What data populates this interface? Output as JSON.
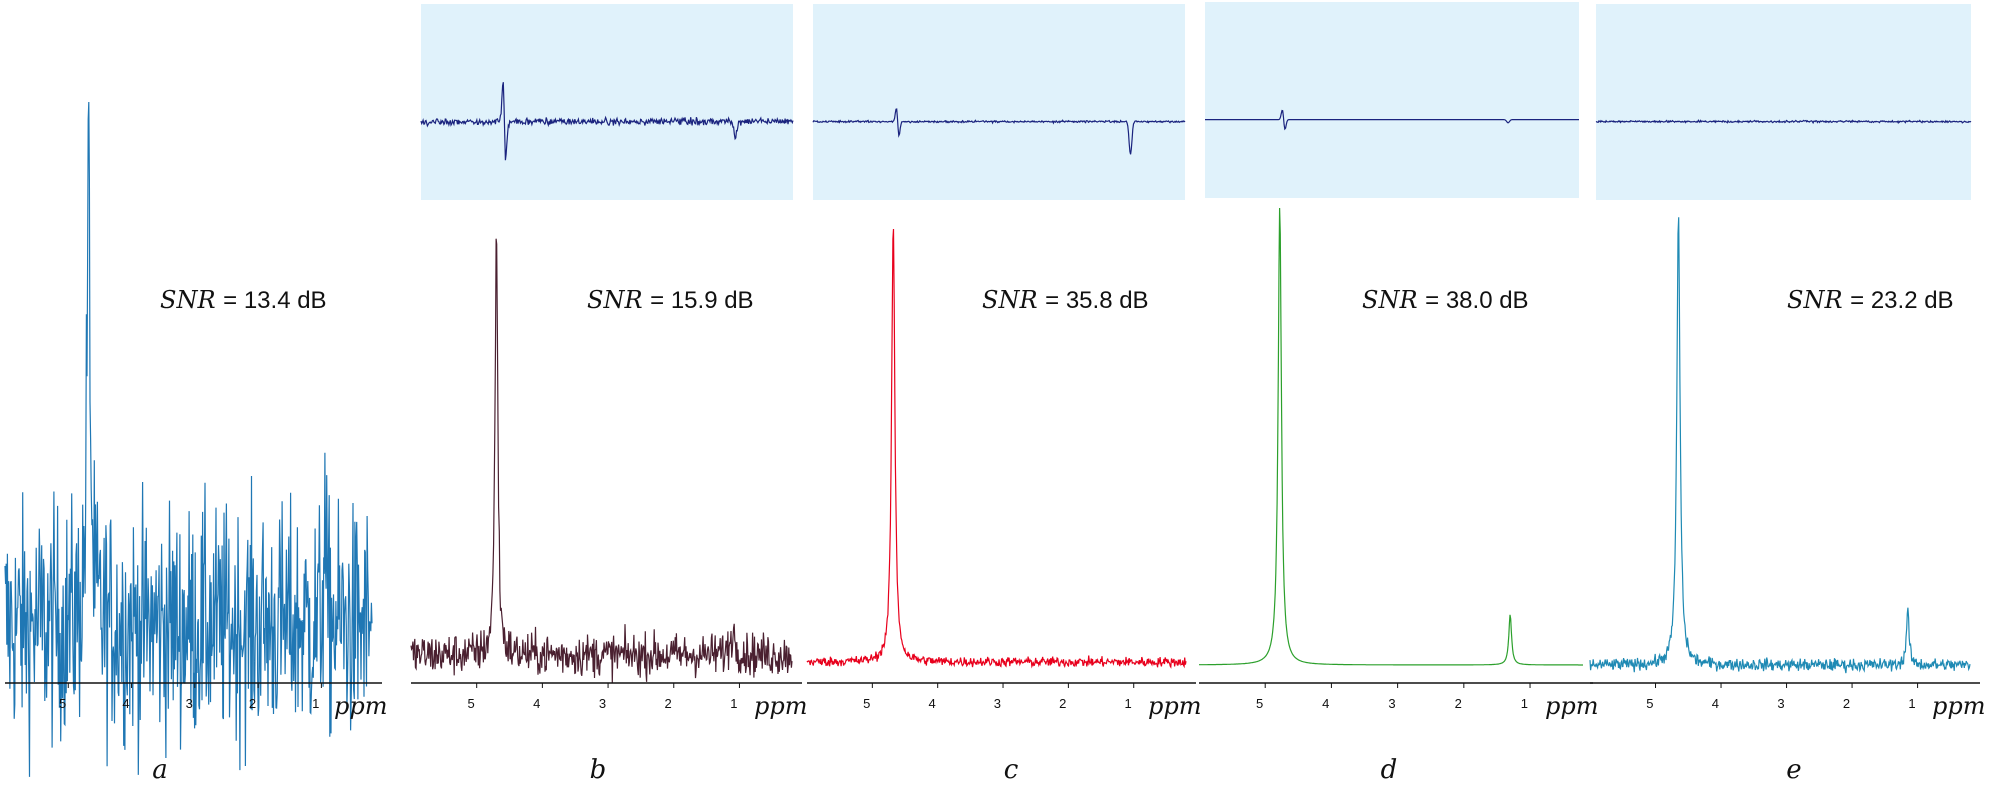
{
  "chart_data": [
    {
      "type": "line",
      "panel_label": "a",
      "annotation": {
        "prefix": "SNR",
        "value": "= 13.4 dB"
      },
      "xlabel": "ppm",
      "x_ticks": [
        "5",
        "4",
        "3",
        "2",
        "1"
      ],
      "xlim": [
        6.0,
        0.2
      ],
      "series": [
        {
          "color": "#1f77b4",
          "noise": 0.18,
          "baseline": 0.0,
          "peaks": [
            {
              "ppm": 4.68,
              "height": 1.0,
              "width": 0.06
            },
            {
              "ppm": 0.95,
              "height": 0.22,
              "width": 0.04
            }
          ]
        }
      ],
      "residual": null
    },
    {
      "type": "line",
      "panel_label": "b",
      "annotation": {
        "prefix": "SNR",
        "value": "= 15.9 dB"
      },
      "xlabel": "ppm",
      "x_ticks": [
        "5",
        "4",
        "3",
        "2",
        "1"
      ],
      "xlim": [
        6.0,
        0.2
      ],
      "series": [
        {
          "color": "#4a2030",
          "noise": 0.035,
          "baseline": 0.0,
          "peaks": [
            {
              "ppm": 4.7,
              "height": 1.0,
              "width": 0.05
            },
            {
              "ppm": 1.1,
              "height": 0.05,
              "width": 0.1
            }
          ]
        }
      ],
      "residual": {
        "color": "#1a237e",
        "background": "#e0f2fb",
        "noise": 0.18,
        "features": [
          {
            "ppm": 4.7,
            "amp": 1.0,
            "kind": "dispersion"
          },
          {
            "ppm": 1.1,
            "amp": -0.3,
            "kind": "dip"
          }
        ]
      }
    },
    {
      "type": "line",
      "panel_label": "c",
      "annotation": {
        "prefix": "SNR",
        "value": "= 35.8 dB"
      },
      "xlabel": "ppm",
      "x_ticks": [
        "5",
        "4",
        "3",
        "2",
        "1"
      ],
      "xlim": [
        6.0,
        0.2
      ],
      "series": [
        {
          "color": "#e8001c",
          "noise": 0.008,
          "baseline": 0.0,
          "peaks": [
            {
              "ppm": 4.68,
              "height": 1.0,
              "width": 0.06
            }
          ]
        }
      ],
      "residual": {
        "color": "#1a237e",
        "background": "#e0f2fb",
        "noise": 0.05,
        "features": [
          {
            "ppm": 4.68,
            "amp": 0.35,
            "kind": "dispersion"
          },
          {
            "ppm": 1.05,
            "amp": -0.6,
            "kind": "dip"
          }
        ]
      }
    },
    {
      "type": "line",
      "panel_label": "d",
      "annotation": {
        "prefix": "SNR",
        "value": "= 38.0 dB"
      },
      "xlabel": "ppm",
      "x_ticks": [
        "5",
        "4",
        "3",
        "2",
        "1"
      ],
      "xlim": [
        6.0,
        0.2
      ],
      "series": [
        {
          "color": "#2ca02c",
          "noise": 0.0,
          "baseline": 0.0,
          "peaks": [
            {
              "ppm": 4.78,
              "height": 1.0,
              "width": 0.06
            },
            {
              "ppm": 1.3,
              "height": 0.11,
              "width": 0.05
            }
          ]
        }
      ],
      "residual": {
        "color": "#1a237e",
        "background": "#e0f2fb",
        "noise": 0.0,
        "features": [
          {
            "ppm": 4.78,
            "amp": 0.25,
            "kind": "dispersion"
          },
          {
            "ppm": 1.3,
            "amp": -0.06,
            "kind": "dip"
          }
        ]
      }
    },
    {
      "type": "line",
      "panel_label": "e",
      "annotation": {
        "prefix": "SNR",
        "value": "= 23.2 dB"
      },
      "xlabel": "ppm",
      "x_ticks": [
        "5",
        "4",
        "3",
        "2",
        "1"
      ],
      "xlim": [
        6.0,
        0.2
      ],
      "series": [
        {
          "color": "#1f8ab4",
          "noise": 0.01,
          "baseline": 0.0,
          "peaks": [
            {
              "ppm": 4.65,
              "height": 1.0,
              "width": 0.06
            },
            {
              "ppm": 1.15,
              "height": 0.12,
              "width": 0.05
            }
          ]
        }
      ],
      "residual": {
        "color": "#1a237e",
        "background": "#e0f2fb",
        "noise": 0.05,
        "features": []
      }
    }
  ]
}
